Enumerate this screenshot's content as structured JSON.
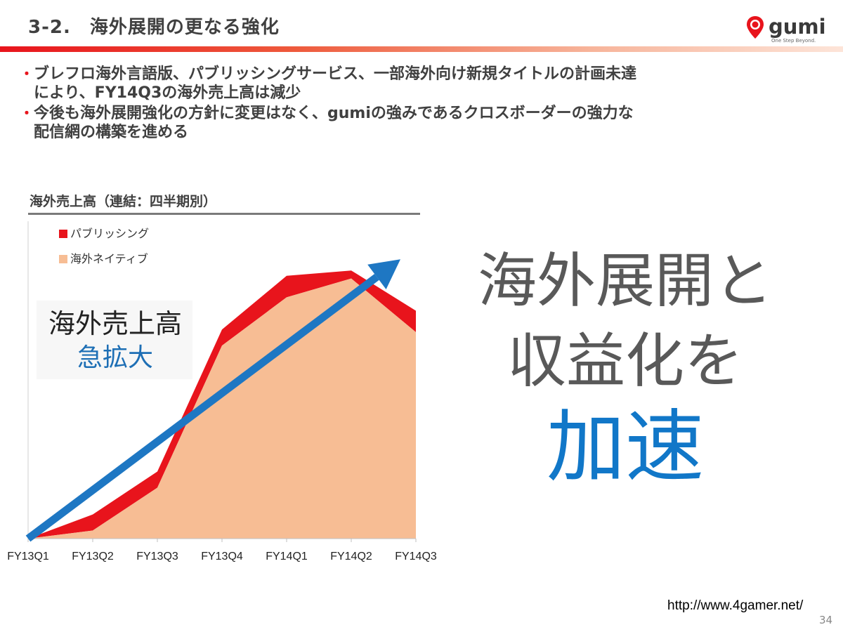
{
  "slide": {
    "title": "3-2.　海外展開の更なる強化",
    "logo": {
      "brand": "gumi",
      "tagline": "One Step Beyond."
    },
    "bullets": [
      {
        "marker": "・",
        "lines": [
          "ブレフロ海外言語版、パブリッシングサービス、一部海外向け新規タイトルの計画未達",
          "により、FY14Q3の海外売上高は減少"
        ]
      },
      {
        "marker": "・",
        "lines": [
          "今後も海外展開強化の方針に変更はなく、gumiの強みであるクロスボーダーの強力な",
          "配信網の構築を進める"
        ]
      }
    ],
    "callout": {
      "line1": "海外売上高",
      "line2": "急拡大"
    },
    "big_message": {
      "line1": "海外展開と",
      "line2": "収益化を",
      "line3": "加速"
    },
    "source_url": "http://www.4gamer.net/",
    "page_number": "34",
    "colors": {
      "accent_red": "#e8141c",
      "native_fill": "#f7bd94",
      "arrow_blue": "#1e77c3",
      "big_accent": "#1177c8"
    }
  },
  "chart_data": {
    "type": "area",
    "stacked": true,
    "title": "海外売上高（連結：四半期別）",
    "categories": [
      "FY13Q1",
      "FY13Q2",
      "FY13Q3",
      "FY13Q4",
      "FY14Q1",
      "FY14Q2",
      "FY14Q3"
    ],
    "series": [
      {
        "name": "海外ネイティブ",
        "color": "#f7bd94",
        "values": [
          0,
          3,
          19,
          72,
          90,
          97,
          77
        ]
      },
      {
        "name": "パブリッシング",
        "color": "#e8141c",
        "values": [
          0,
          6,
          6,
          6,
          8,
          3,
          8
        ]
      }
    ],
    "ylim": [
      0,
      110
    ],
    "legend": "top-left",
    "grid": false,
    "trend_arrow": {
      "from": "FY13Q1",
      "to": "FY14Q3",
      "start_value": 0,
      "end_value": 100,
      "color": "#1e77c3"
    }
  }
}
